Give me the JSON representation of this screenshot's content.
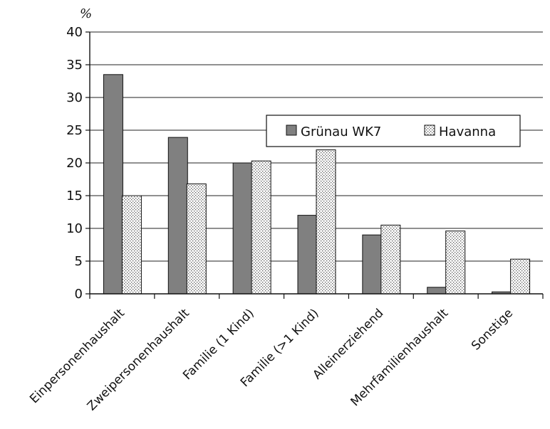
{
  "chart_data": {
    "type": "bar",
    "title": "",
    "xlabel": "",
    "ylabel": "%",
    "ylim": [
      0,
      40
    ],
    "yticks": [
      0,
      5,
      10,
      15,
      20,
      25,
      30,
      35,
      40
    ],
    "grid": true,
    "legend_position": "top-right",
    "categories": [
      "Einpersonenhaushalt",
      "Zweipersonenhaushalt",
      "Familie (1 Kind)",
      "Familie (>1 Kind)",
      "Alleinerziehend",
      "Mehrfamilienhaushalt",
      "Sonstige"
    ],
    "series": [
      {
        "name": "Grünau WK7",
        "color": "#808080",
        "pattern": "solid",
        "values": [
          33.5,
          23.9,
          20.0,
          12.0,
          9.0,
          1.0,
          0.3
        ]
      },
      {
        "name": "Havanna",
        "color": "#ffffff",
        "pattern": "dotted",
        "values": [
          15.0,
          16.8,
          20.3,
          22.0,
          10.5,
          9.6,
          5.3
        ]
      }
    ]
  }
}
